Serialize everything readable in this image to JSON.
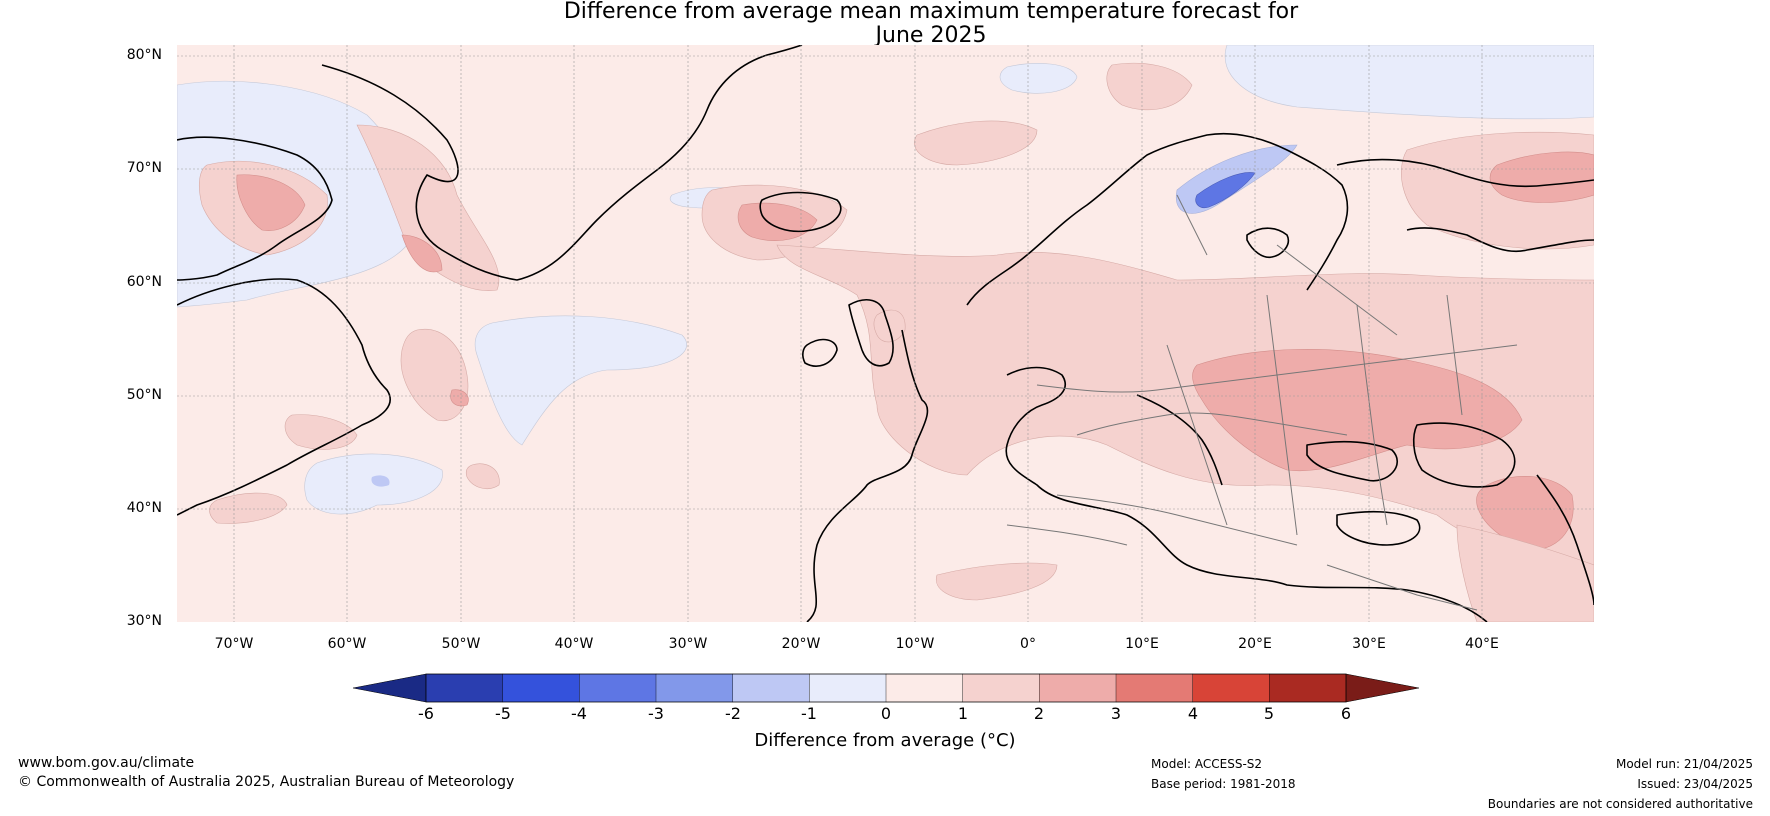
{
  "title": {
    "line1": "Difference from average mean maximum temperature forecast for",
    "line2": "June 2025"
  },
  "lat_labels": [
    "80°N",
    "70°N",
    "60°N",
    "50°N",
    "40°N",
    "30°N"
  ],
  "lon_labels": [
    "70°W",
    "60°W",
    "50°W",
    "40°W",
    "30°W",
    "20°W",
    "10°W",
    "0°",
    "10°E",
    "20°E",
    "30°E",
    "40°E"
  ],
  "colorbar": {
    "label": "Difference from average (°C)",
    "ticks": [
      "-6",
      "-5",
      "-4",
      "-3",
      "-2",
      "-1",
      "0",
      "1",
      "2",
      "3",
      "4",
      "5",
      "6"
    ],
    "under_color": "#1a2a85",
    "over_color": "#7a1c18",
    "colors": [
      "#2a3eb0",
      "#3452dc",
      "#5e76e4",
      "#8298ea",
      "#bec8f4",
      "#e8ecfb",
      "#fcebe8",
      "#f5d2cf",
      "#eeacaa",
      "#e47a74",
      "#d84437",
      "#aa2a22"
    ]
  },
  "map_colors": {
    "background": "#fcebe8",
    "warm1": "#f5d2cf",
    "warm2": "#eeacaa",
    "warm3": "#e47a74",
    "cool1": "#e8ecfb",
    "cool2": "#bec8f4",
    "cool3": "#5e76e4",
    "coast": "#000000",
    "border": "#777777"
  },
  "footer": {
    "website": "www.bom.gov.au/climate",
    "copyright": "© Commonwealth of Australia 2025, Australian Bureau of Meteorology",
    "model": "Model: ACCESS-S2",
    "base_period": "Base period: 1981-2018",
    "model_run": "Model run: 21/04/2025",
    "issued": "Issued: 23/04/2025",
    "disclaimer": "Boundaries are not considered authoritative"
  }
}
